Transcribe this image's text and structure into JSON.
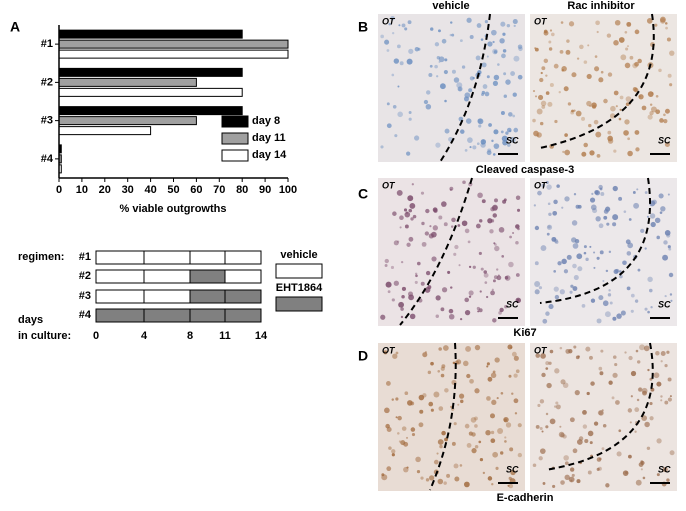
{
  "panel_labels": [
    "A",
    "B",
    "C",
    "D"
  ],
  "chart_data": {
    "type": "bar",
    "orientation": "horizontal",
    "categories": [
      "#1",
      "#2",
      "#3",
      "#4"
    ],
    "series": [
      {
        "name": "day 8",
        "color": "#000000",
        "values": [
          80,
          80,
          80,
          1
        ]
      },
      {
        "name": "day 11",
        "color": "#a0a0a0",
        "values": [
          100,
          60,
          60,
          1
        ]
      },
      {
        "name": "day 14",
        "color": "#ffffff",
        "values": [
          100,
          80,
          40,
          1
        ]
      }
    ],
    "xlabel": "% viable outgrowths",
    "xlim": [
      0,
      100
    ],
    "xticks": [
      0,
      10,
      20,
      30,
      40,
      50,
      60,
      70,
      80,
      90,
      100
    ],
    "legend": "lower right"
  },
  "regimen": {
    "label": "regimen:",
    "rows": [
      "#1",
      "#2",
      "#3",
      "#4"
    ],
    "days_label": [
      "days",
      "in culture:"
    ],
    "days": [
      0,
      4,
      8,
      11,
      14
    ],
    "legend": [
      "vehicle",
      "EHT1864"
    ]
  },
  "images": {
    "columns": [
      "vehicle",
      "Rac inhibitor"
    ],
    "captions": [
      "Cleaved caspase-3",
      "Ki67",
      "E-cadherin"
    ],
    "tissue_labels": [
      "OT",
      "SC"
    ]
  }
}
